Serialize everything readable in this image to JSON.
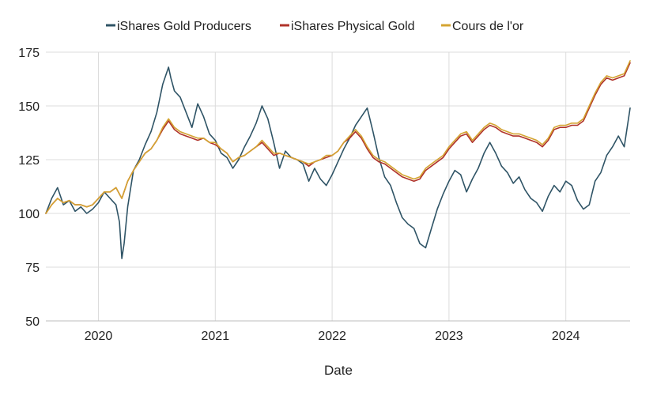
{
  "chart_data": {
    "type": "line",
    "title": "",
    "xlabel": "Date",
    "ylabel": "",
    "ylim": [
      50,
      175
    ],
    "xlim": [
      2019.55,
      2024.55
    ],
    "yticks": [
      50,
      75,
      100,
      125,
      150,
      175
    ],
    "xticks": [
      2020,
      2021,
      2022,
      2023,
      2024
    ],
    "xtick_labels": [
      "2020",
      "2021",
      "2022",
      "2023",
      "2024"
    ],
    "grid": true,
    "legend_position": "top",
    "series": [
      {
        "name": "iShares Gold Producers",
        "color": "#2f5466",
        "x": [
          2019.55,
          2019.6,
          2019.65,
          2019.7,
          2019.75,
          2019.8,
          2019.85,
          2019.9,
          2019.95,
          2020.0,
          2020.05,
          2020.1,
          2020.15,
          2020.18,
          2020.2,
          2020.22,
          2020.25,
          2020.3,
          2020.35,
          2020.4,
          2020.45,
          2020.5,
          2020.55,
          2020.6,
          2020.62,
          2020.65,
          2020.7,
          2020.75,
          2020.8,
          2020.85,
          2020.9,
          2020.95,
          2021.0,
          2021.05,
          2021.1,
          2021.15,
          2021.2,
          2021.25,
          2021.3,
          2021.35,
          2021.4,
          2021.45,
          2021.5,
          2021.55,
          2021.6,
          2021.65,
          2021.7,
          2021.75,
          2021.8,
          2021.85,
          2021.9,
          2021.95,
          2022.0,
          2022.05,
          2022.1,
          2022.15,
          2022.2,
          2022.25,
          2022.3,
          2022.35,
          2022.4,
          2022.45,
          2022.5,
          2022.55,
          2022.6,
          2022.65,
          2022.7,
          2022.75,
          2022.8,
          2022.85,
          2022.9,
          2022.95,
          2023.0,
          2023.05,
          2023.1,
          2023.15,
          2023.2,
          2023.25,
          2023.3,
          2023.35,
          2023.4,
          2023.45,
          2023.5,
          2023.55,
          2023.6,
          2023.65,
          2023.7,
          2023.75,
          2023.8,
          2023.85,
          2023.9,
          2023.95,
          2024.0,
          2024.05,
          2024.1,
          2024.15,
          2024.2,
          2024.25,
          2024.3,
          2024.35,
          2024.4,
          2024.45,
          2024.5,
          2024.55
        ],
        "y": [
          100,
          107,
          112,
          104,
          106,
          101,
          103,
          100,
          102,
          105,
          110,
          107,
          104,
          96,
          79,
          86,
          103,
          120,
          125,
          132,
          138,
          147,
          160,
          168,
          163,
          157,
          154,
          147,
          140,
          151,
          145,
          137,
          134,
          128,
          126,
          121,
          125,
          131,
          136,
          142,
          150,
          144,
          133,
          121,
          129,
          126,
          125,
          123,
          115,
          121,
          116,
          113,
          118,
          124,
          130,
          135,
          141,
          145,
          149,
          138,
          126,
          117,
          113,
          105,
          98,
          95,
          93,
          86,
          84,
          93,
          102,
          109,
          115,
          120,
          118,
          110,
          116,
          121,
          128,
          133,
          128,
          122,
          119,
          114,
          117,
          111,
          107,
          105,
          101,
          108,
          113,
          110,
          115,
          113,
          106,
          102,
          104,
          115,
          119,
          127,
          131,
          136,
          131,
          149
        ]
      },
      {
        "name": "iShares Physical Gold",
        "color": "#b0332a",
        "x": [
          2019.55,
          2019.6,
          2019.65,
          2019.7,
          2019.75,
          2019.8,
          2019.85,
          2019.9,
          2019.95,
          2020.0,
          2020.05,
          2020.1,
          2020.15,
          2020.2,
          2020.25,
          2020.3,
          2020.35,
          2020.4,
          2020.45,
          2020.5,
          2020.55,
          2020.6,
          2020.65,
          2020.7,
          2020.75,
          2020.8,
          2020.85,
          2020.9,
          2020.95,
          2021.0,
          2021.05,
          2021.1,
          2021.15,
          2021.2,
          2021.25,
          2021.3,
          2021.35,
          2021.4,
          2021.45,
          2021.5,
          2021.55,
          2021.6,
          2021.65,
          2021.7,
          2021.75,
          2021.8,
          2021.85,
          2021.9,
          2021.95,
          2022.0,
          2022.05,
          2022.1,
          2022.15,
          2022.2,
          2022.25,
          2022.3,
          2022.35,
          2022.4,
          2022.45,
          2022.5,
          2022.55,
          2022.6,
          2022.65,
          2022.7,
          2022.75,
          2022.8,
          2022.85,
          2022.9,
          2022.95,
          2023.0,
          2023.05,
          2023.1,
          2023.15,
          2023.2,
          2023.25,
          2023.3,
          2023.35,
          2023.4,
          2023.45,
          2023.5,
          2023.55,
          2023.6,
          2023.65,
          2023.7,
          2023.75,
          2023.8,
          2023.85,
          2023.9,
          2023.95,
          2024.0,
          2024.05,
          2024.1,
          2024.15,
          2024.2,
          2024.25,
          2024.3,
          2024.35,
          2024.4,
          2024.45,
          2024.5,
          2024.55
        ],
        "y": [
          100,
          104,
          107,
          105,
          106,
          104,
          104,
          103,
          104,
          107,
          110,
          110,
          112,
          107,
          115,
          120,
          124,
          128,
          130,
          134,
          139,
          143,
          139,
          137,
          136,
          135,
          134,
          135,
          133,
          132,
          130,
          128,
          124,
          126,
          127,
          129,
          131,
          133,
          130,
          127,
          128,
          127,
          126,
          125,
          124,
          122,
          124,
          125,
          126,
          127,
          129,
          133,
          135,
          138,
          135,
          130,
          126,
          124,
          123,
          121,
          119,
          117,
          116,
          115,
          116,
          120,
          122,
          124,
          126,
          130,
          133,
          136,
          137,
          133,
          136,
          139,
          141,
          140,
          138,
          137,
          136,
          136,
          135,
          134,
          133,
          131,
          134,
          139,
          140,
          140,
          141,
          141,
          143,
          149,
          155,
          160,
          163,
          162,
          163,
          164,
          170
        ]
      },
      {
        "name": "Cours de l'or",
        "color": "#d4a431",
        "x": [
          2019.55,
          2019.6,
          2019.65,
          2019.7,
          2019.75,
          2019.8,
          2019.85,
          2019.9,
          2019.95,
          2020.0,
          2020.05,
          2020.1,
          2020.15,
          2020.2,
          2020.25,
          2020.3,
          2020.35,
          2020.4,
          2020.45,
          2020.5,
          2020.55,
          2020.6,
          2020.65,
          2020.7,
          2020.75,
          2020.8,
          2020.85,
          2020.9,
          2020.95,
          2021.0,
          2021.05,
          2021.1,
          2021.15,
          2021.2,
          2021.25,
          2021.3,
          2021.35,
          2021.4,
          2021.45,
          2021.5,
          2021.55,
          2021.6,
          2021.65,
          2021.7,
          2021.75,
          2021.8,
          2021.85,
          2021.9,
          2021.95,
          2022.0,
          2022.05,
          2022.1,
          2022.15,
          2022.2,
          2022.25,
          2022.3,
          2022.35,
          2022.4,
          2022.45,
          2022.5,
          2022.55,
          2022.6,
          2022.65,
          2022.7,
          2022.75,
          2022.8,
          2022.85,
          2022.9,
          2022.95,
          2023.0,
          2023.05,
          2023.1,
          2023.15,
          2023.2,
          2023.25,
          2023.3,
          2023.35,
          2023.4,
          2023.45,
          2023.5,
          2023.55,
          2023.6,
          2023.65,
          2023.7,
          2023.75,
          2023.8,
          2023.85,
          2023.9,
          2023.95,
          2024.0,
          2024.05,
          2024.1,
          2024.15,
          2024.2,
          2024.25,
          2024.3,
          2024.35,
          2024.4,
          2024.45,
          2024.5,
          2024.55
        ],
        "y": [
          100,
          104,
          107,
          105,
          106,
          104,
          104,
          103,
          104,
          107,
          110,
          110,
          112,
          107,
          115,
          120,
          124,
          128,
          130,
          134,
          140,
          144,
          140,
          138,
          137,
          136,
          135,
          135,
          133,
          133,
          130,
          128,
          124,
          126,
          127,
          129,
          131,
          134,
          131,
          128,
          128,
          127,
          126,
          125,
          124,
          123,
          124,
          125,
          127,
          127,
          129,
          133,
          136,
          139,
          136,
          131,
          127,
          125,
          124,
          122,
          120,
          118,
          117,
          116,
          117,
          121,
          123,
          125,
          127,
          131,
          134,
          137,
          138,
          134,
          137,
          140,
          142,
          141,
          139,
          138,
          137,
          137,
          136,
          135,
          134,
          132,
          135,
          140,
          141,
          141,
          142,
          142,
          144,
          150,
          156,
          161,
          164,
          163,
          164,
          165,
          171
        ]
      }
    ]
  }
}
